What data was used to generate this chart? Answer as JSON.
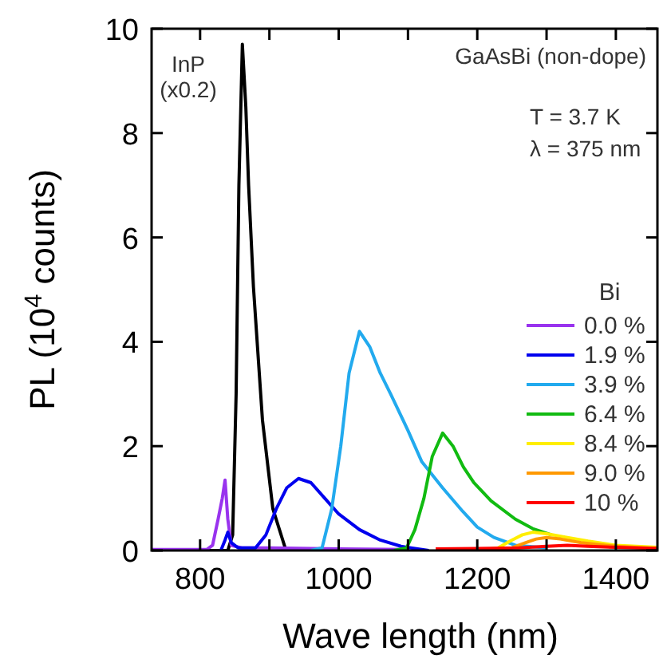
{
  "chart_data": {
    "type": "line",
    "xlabel": "Wave length (nm)",
    "ylabel": "PL (10$^{4}$ counts)",
    "legend_title": "Bi",
    "legend": "right",
    "xlim": [
      730,
      1460
    ],
    "ylim": [
      0,
      10
    ],
    "xticks": [
      800,
      {
        "value": 900,
        "label": null
      },
      1000,
      {
        "value": 1100,
        "label": null
      },
      1200,
      {
        "value": 1300,
        "label": null
      },
      1400
    ],
    "yticks": [
      0,
      2,
      4,
      6,
      8,
      10
    ],
    "annotations": [
      "InP",
      "(x0.2)",
      "GaAsBi (non-dope)",
      "T = 3.7 K",
      "λ = 375 nm"
    ],
    "series": [
      {
        "color": "#000000",
        "x": [
          730,
          840,
          847,
          852,
          856,
          861,
          866,
          870,
          877,
          890,
          905,
          924,
          1000
        ],
        "values": [
          0,
          0,
          0.3,
          3,
          7,
          9.7,
          8.5,
          7,
          5.05,
          2.5,
          0.8,
          0,
          0
        ]
      },
      {
        "name": "0.0 %",
        "color": "#9933ee",
        "x": [
          730,
          810,
          818,
          826,
          832,
          836,
          840,
          845,
          860,
          900,
          1000,
          1100
        ],
        "values": [
          0.02,
          0.02,
          0.1,
          0.6,
          1.0,
          1.35,
          0.6,
          0.1,
          0.05,
          0.05,
          0.03,
          0.02
        ]
      },
      {
        "name": "1.9 %",
        "color": "#0000ee",
        "x": [
          830,
          836,
          840,
          845,
          855,
          880,
          895,
          910,
          925,
          942,
          960,
          980,
          1000,
          1030,
          1060,
          1090,
          1104,
          1130
        ],
        "values": [
          0,
          0.2,
          0.35,
          0.15,
          0.05,
          0.05,
          0.3,
          0.8,
          1.2,
          1.38,
          1.3,
          1.0,
          0.7,
          0.4,
          0.2,
          0.08,
          0.05,
          0
        ]
      },
      {
        "name": "3.9 %",
        "color": "#22aaee",
        "x": [
          960,
          976,
          990,
          1003,
          1015,
          1030,
          1045,
          1060,
          1075,
          1100,
          1120,
          1150,
          1179,
          1200,
          1224,
          1255,
          1300
        ],
        "values": [
          0,
          0.05,
          0.8,
          2.0,
          3.4,
          4.2,
          3.9,
          3.4,
          3.0,
          2.3,
          1.7,
          1.2,
          0.75,
          0.45,
          0.25,
          0.1,
          0.05
        ]
      },
      {
        "name": "6.4 %",
        "color": "#11bb11",
        "x": [
          1080,
          1098,
          1110,
          1123,
          1135,
          1150,
          1165,
          1180,
          1195,
          1220,
          1255,
          1280,
          1307
        ],
        "values": [
          0,
          0.05,
          0.4,
          1.0,
          1.8,
          2.25,
          2.0,
          1.6,
          1.3,
          0.95,
          0.6,
          0.42,
          0.3
        ]
      },
      {
        "name": "8.4 %",
        "color": "#ffee00",
        "x": [
          1200,
          1230,
          1250,
          1265,
          1280,
          1300,
          1330,
          1360,
          1400,
          1460
        ],
        "values": [
          0,
          0.05,
          0.2,
          0.3,
          0.35,
          0.32,
          0.25,
          0.18,
          0.1,
          0.06
        ]
      },
      {
        "name": "9.0 %",
        "color": "#ff9900",
        "x": [
          1220,
          1250,
          1270,
          1285,
          1300,
          1320,
          1350,
          1400,
          1460
        ],
        "values": [
          0,
          0.05,
          0.15,
          0.22,
          0.25,
          0.22,
          0.15,
          0.08,
          0.04
        ]
      },
      {
        "name": "10 %",
        "color": "#ff0000",
        "x": [
          1140,
          1200,
          1260,
          1300,
          1330,
          1360,
          1400,
          1460
        ],
        "values": [
          0.03,
          0.04,
          0.05,
          0.08,
          0.1,
          0.08,
          0.06,
          0.04
        ]
      }
    ]
  }
}
